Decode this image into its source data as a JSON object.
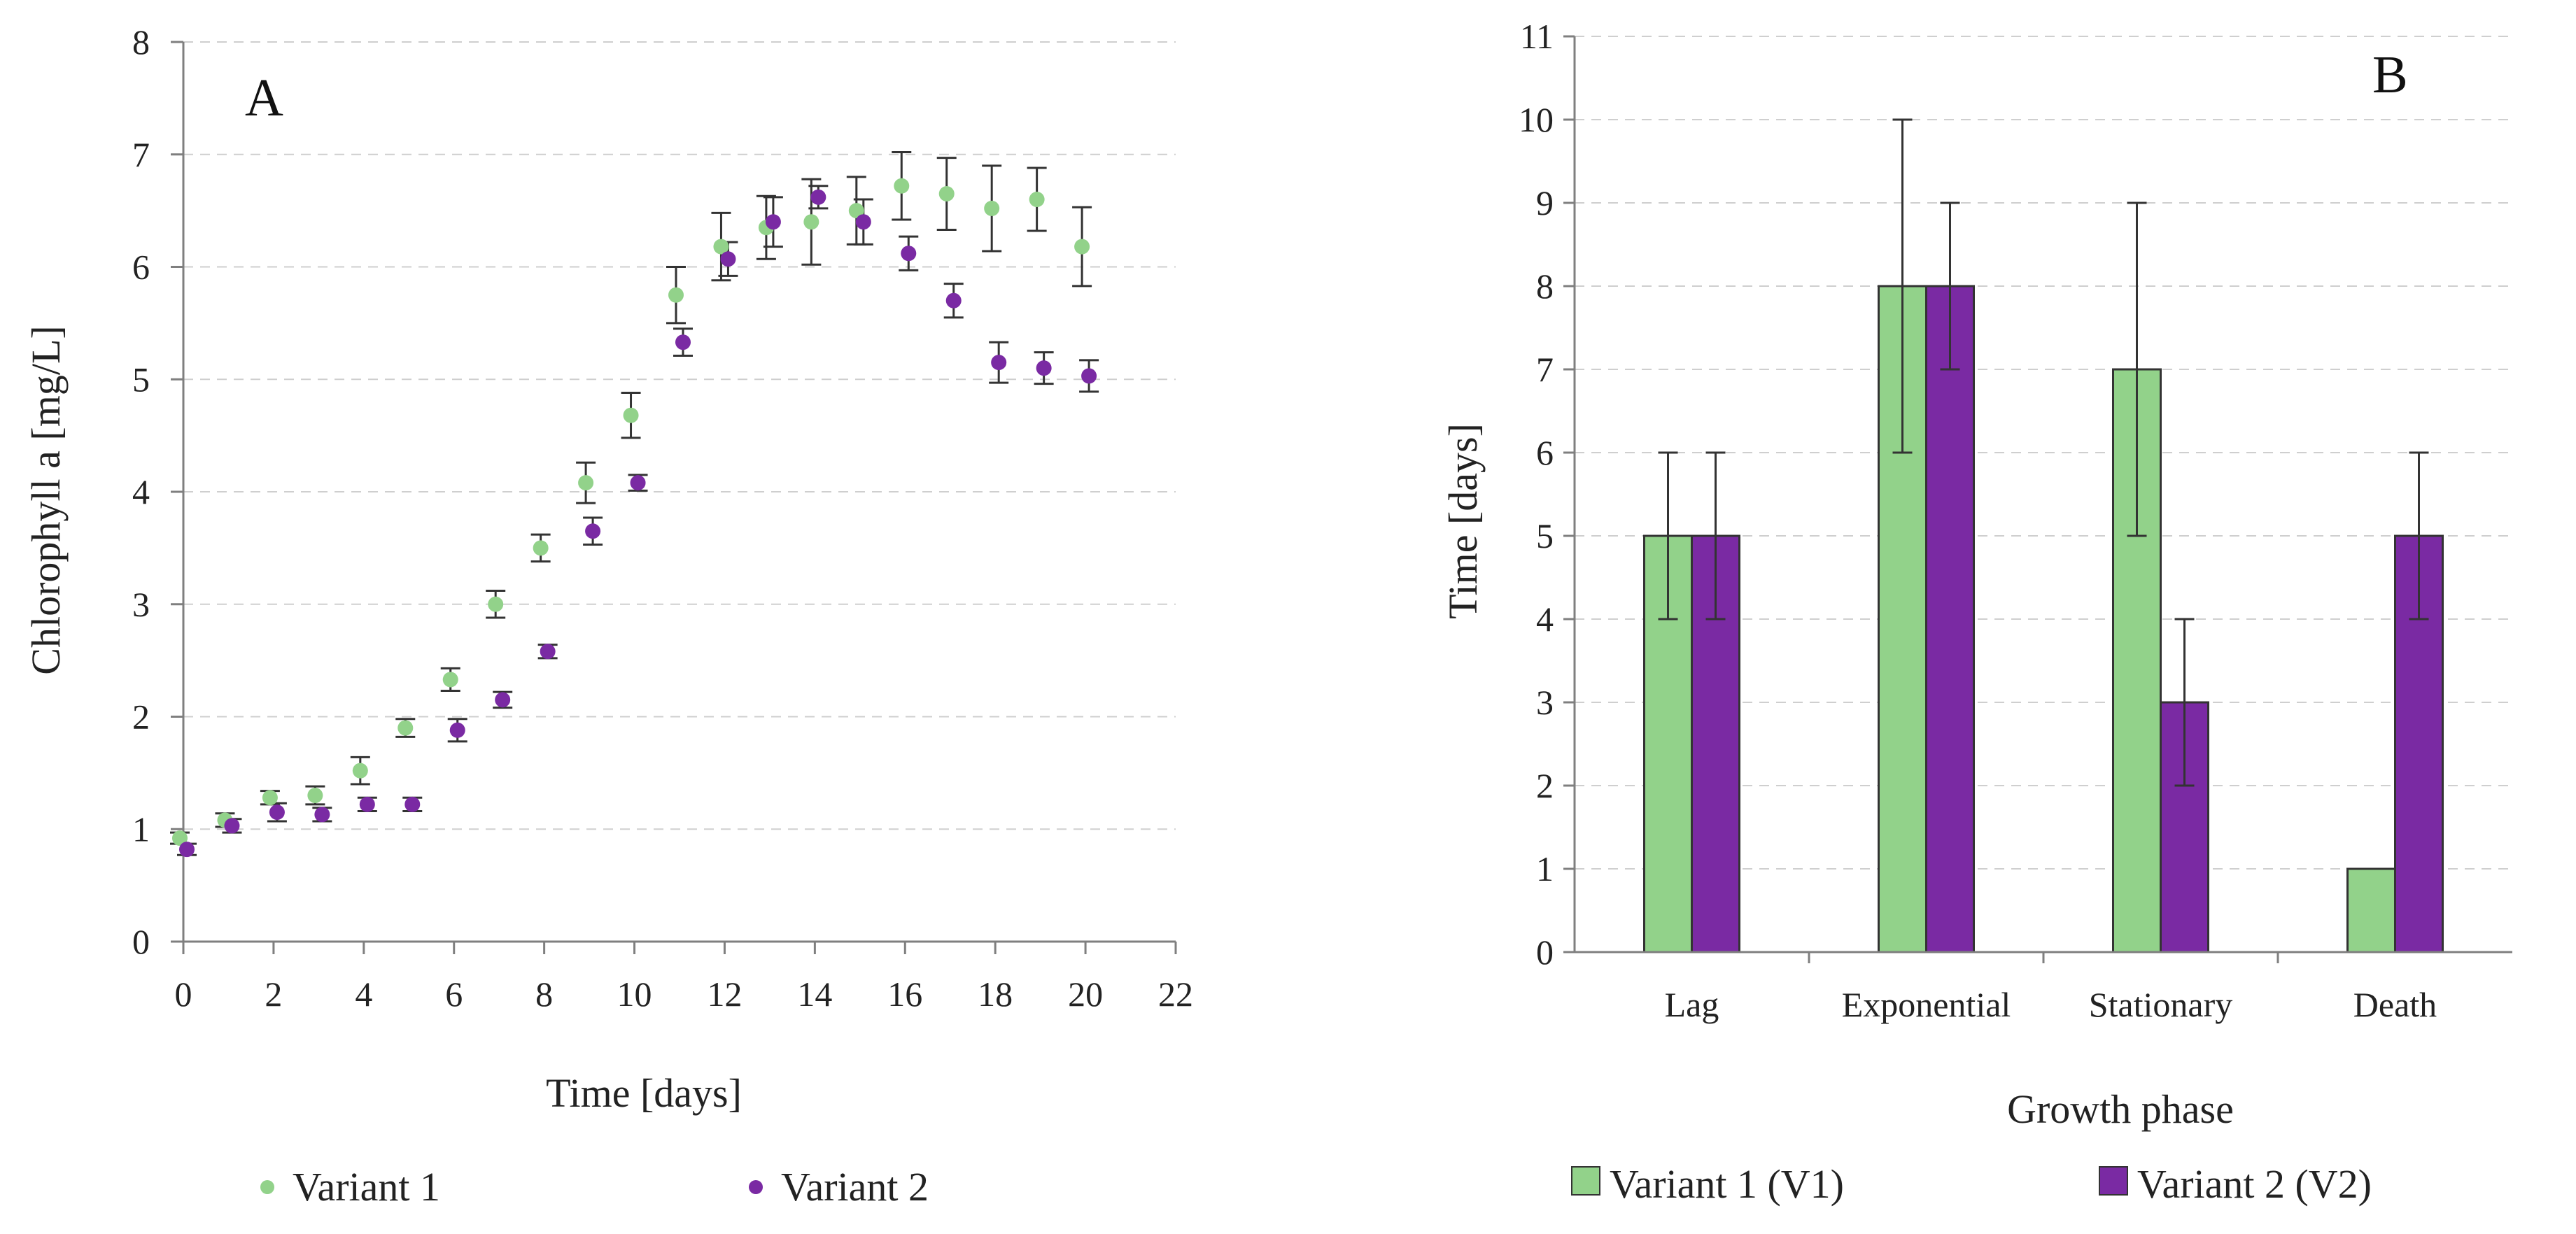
{
  "colors": {
    "variant1": "#92d28a",
    "variant2": "#7a2aa3",
    "bar_outline": "#333333"
  },
  "chart_data": [
    {
      "type": "scatter",
      "panel_label": "A",
      "xlabel": "Time [days]",
      "ylabel": "Chlorophyll a [mg/L]",
      "xlim": [
        0,
        22
      ],
      "ylim": [
        0,
        8
      ],
      "xticks": [
        0,
        2,
        4,
        6,
        8,
        10,
        12,
        14,
        16,
        18,
        20,
        22
      ],
      "yticks": [
        0,
        1,
        2,
        3,
        4,
        5,
        6,
        7,
        8
      ],
      "grid": "horizontal dashed",
      "legend_position": "bottom",
      "x": [
        0,
        1,
        2,
        3,
        4,
        5,
        6,
        7,
        8,
        9,
        10,
        11,
        12,
        13,
        14,
        15,
        16,
        17,
        18,
        19,
        20
      ],
      "series": [
        {
          "name": "Variant 1",
          "values": [
            0.92,
            1.08,
            1.28,
            1.3,
            1.52,
            1.9,
            2.33,
            3.0,
            3.5,
            4.08,
            4.68,
            5.75,
            6.18,
            6.35,
            6.4,
            6.5,
            6.72,
            6.65,
            6.52,
            6.6,
            6.18
          ],
          "errors": [
            0.05,
            0.06,
            0.06,
            0.08,
            0.12,
            0.08,
            0.1,
            0.12,
            0.12,
            0.18,
            0.2,
            0.25,
            0.3,
            0.28,
            0.38,
            0.3,
            0.3,
            0.32,
            0.38,
            0.28,
            0.35
          ]
        },
        {
          "name": "Variant 2",
          "values": [
            0.82,
            1.03,
            1.15,
            1.13,
            1.22,
            1.22,
            1.88,
            2.15,
            2.58,
            3.65,
            4.08,
            5.33,
            6.07,
            6.4,
            6.62,
            6.4,
            6.12,
            5.7,
            5.15,
            5.1,
            5.03
          ],
          "errors": [
            0.05,
            0.06,
            0.08,
            0.06,
            0.06,
            0.06,
            0.1,
            0.07,
            0.06,
            0.12,
            0.07,
            0.12,
            0.15,
            0.22,
            0.1,
            0.2,
            0.15,
            0.15,
            0.18,
            0.14,
            0.14
          ]
        }
      ]
    },
    {
      "type": "bar",
      "panel_label": "B",
      "xlabel": "Growth phase",
      "ylabel": "Time [days]",
      "ylim": [
        0,
        11
      ],
      "yticks": [
        0,
        1,
        2,
        3,
        4,
        5,
        6,
        7,
        8,
        9,
        10,
        11
      ],
      "grid": "horizontal dashed",
      "legend_position": "bottom",
      "categories": [
        "Lag",
        "Exponential",
        "Stationary",
        "Death"
      ],
      "series": [
        {
          "name": "Variant 1 (V1)",
          "values": [
            5,
            8,
            7,
            1
          ],
          "errors": [
            1,
            2,
            2,
            0
          ]
        },
        {
          "name": "Variant 2 (V2)",
          "values": [
            5,
            8,
            3,
            5
          ],
          "errors": [
            1,
            1,
            1,
            1
          ]
        }
      ]
    }
  ]
}
